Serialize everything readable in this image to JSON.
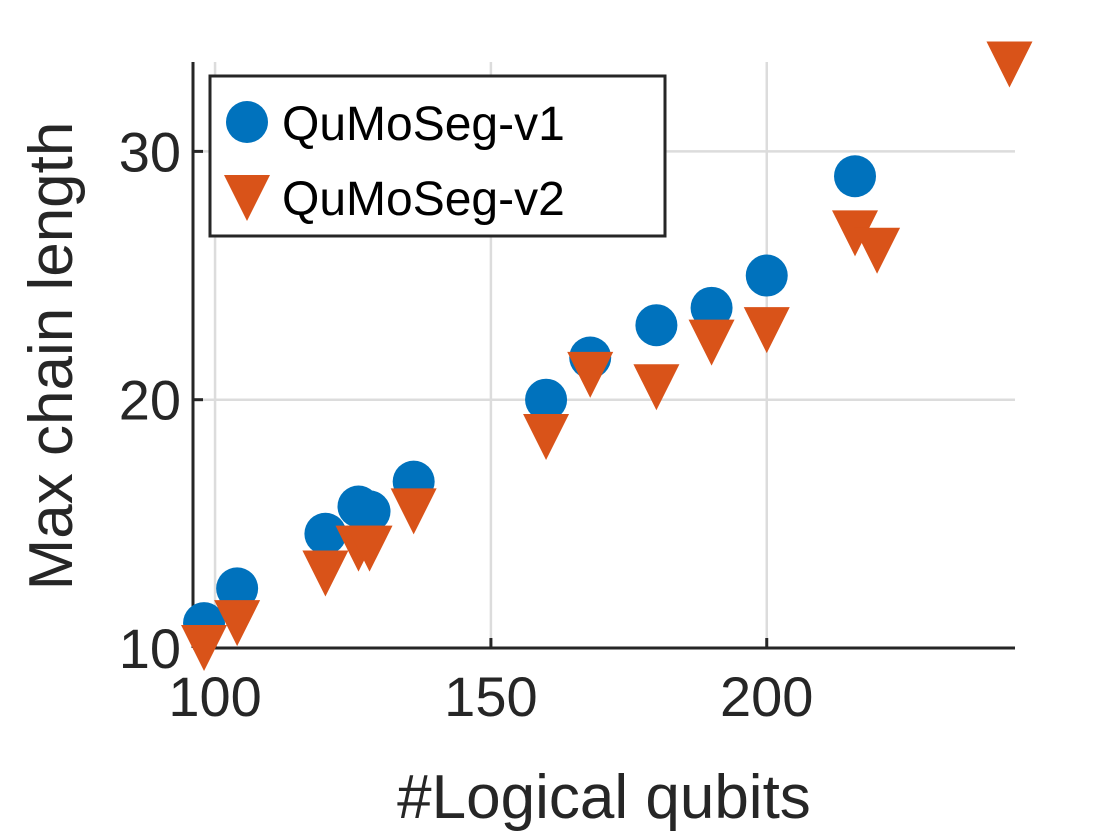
{
  "chart_data": {
    "type": "scatter",
    "title": "",
    "xlabel": "#Logical qubits",
    "ylabel": "Max chain length",
    "xlim": [
      96,
      245
    ],
    "ylim": [
      10,
      33.6
    ],
    "xticks": [
      100,
      150,
      200
    ],
    "yticks": [
      10,
      20,
      30
    ],
    "xtick_labels": [
      "100",
      "150",
      "200"
    ],
    "ytick_labels": [
      "10",
      "20",
      "30"
    ],
    "grid": true,
    "legend": "top-left",
    "series": [
      {
        "name": "QuMoSeg-v1",
        "marker": "circle",
        "color": "#0072BD",
        "points": [
          [
            98,
            11
          ],
          [
            104,
            12.4
          ],
          [
            120,
            14.6
          ],
          [
            126,
            15.7
          ],
          [
            128,
            15.5
          ],
          [
            136,
            16.7
          ],
          [
            160,
            20
          ],
          [
            168,
            21.7
          ],
          [
            180,
            23
          ],
          [
            190,
            23.7
          ],
          [
            200,
            25
          ],
          [
            216,
            29
          ]
        ]
      },
      {
        "name": "QuMoSeg-v2",
        "marker": "triangle-down",
        "color": "#D95319",
        "points": [
          [
            98,
            10
          ],
          [
            104,
            11
          ],
          [
            120,
            13
          ],
          [
            126,
            14
          ],
          [
            128,
            14
          ],
          [
            136,
            15.5
          ],
          [
            160,
            18.5
          ],
          [
            168,
            21
          ],
          [
            180,
            20.5
          ],
          [
            190,
            22.3
          ],
          [
            200,
            22.8
          ],
          [
            216,
            26.7
          ],
          [
            220,
            26
          ],
          [
            244,
            33.5
          ]
        ]
      }
    ]
  }
}
